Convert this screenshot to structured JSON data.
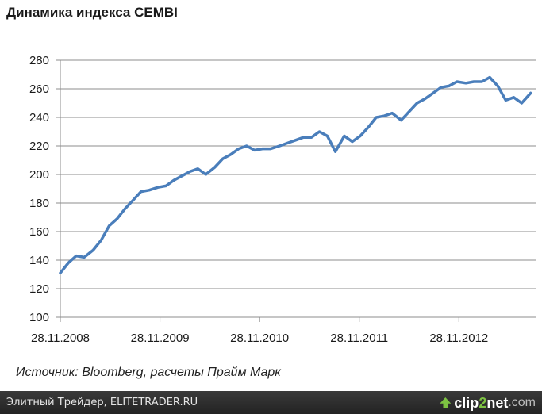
{
  "chart_data": {
    "type": "line",
    "title": "Динамика индекса CEMBI",
    "source": "Источник: Bloomberg, расчеты Прайм Марк",
    "ylim": [
      100,
      280
    ],
    "y_ticks": [
      "100",
      "120",
      "140",
      "160",
      "180",
      "200",
      "220",
      "240",
      "260",
      "280"
    ],
    "x_ticks": [
      "28.11.2008",
      "28.11.2009",
      "28.11.2010",
      "28.11.2011",
      "28.11.2012"
    ],
    "xlim": [
      0,
      4.77
    ],
    "grid": true,
    "line_color": "#4a7ebb",
    "series": [
      {
        "x": [
          0,
          0.08,
          0.16,
          0.24,
          0.33,
          0.41,
          0.49,
          0.57,
          0.65,
          0.73,
          0.81,
          0.89,
          0.98,
          1.06,
          1.14,
          1.22,
          1.3,
          1.38,
          1.46,
          1.55,
          1.63,
          1.71,
          1.79,
          1.87,
          1.95,
          2.03,
          2.11,
          2.2,
          2.28,
          2.36,
          2.44,
          2.52,
          2.6,
          2.68,
          2.76,
          2.85,
          2.93,
          3.01,
          3.09,
          3.17,
          3.25,
          3.33,
          3.42,
          3.5,
          3.58,
          3.66,
          3.74,
          3.82,
          3.9,
          3.98,
          4.07,
          4.15,
          4.23,
          4.31,
          4.39,
          4.47,
          4.55,
          4.63,
          4.72
        ],
        "y": [
          131,
          138,
          143,
          142,
          147,
          154,
          164,
          169,
          176,
          182,
          188,
          189,
          191,
          192,
          196,
          199,
          202,
          204,
          200,
          205,
          211,
          214,
          218,
          220,
          217,
          218,
          218,
          220,
          222,
          224,
          226,
          226,
          230,
          227,
          216,
          227,
          223,
          227,
          233,
          240,
          241,
          243,
          238,
          244,
          250,
          253,
          257,
          261,
          262,
          265,
          264,
          265,
          265,
          268,
          262,
          252,
          254,
          250,
          257
        ]
      }
    ]
  },
  "footer": {
    "text": "Элитный Трейдер, ELITETRADER.RU",
    "logo_prefix": "clip",
    "logo_num": "2",
    "logo_mid": "net",
    "logo_tld": ".com"
  }
}
